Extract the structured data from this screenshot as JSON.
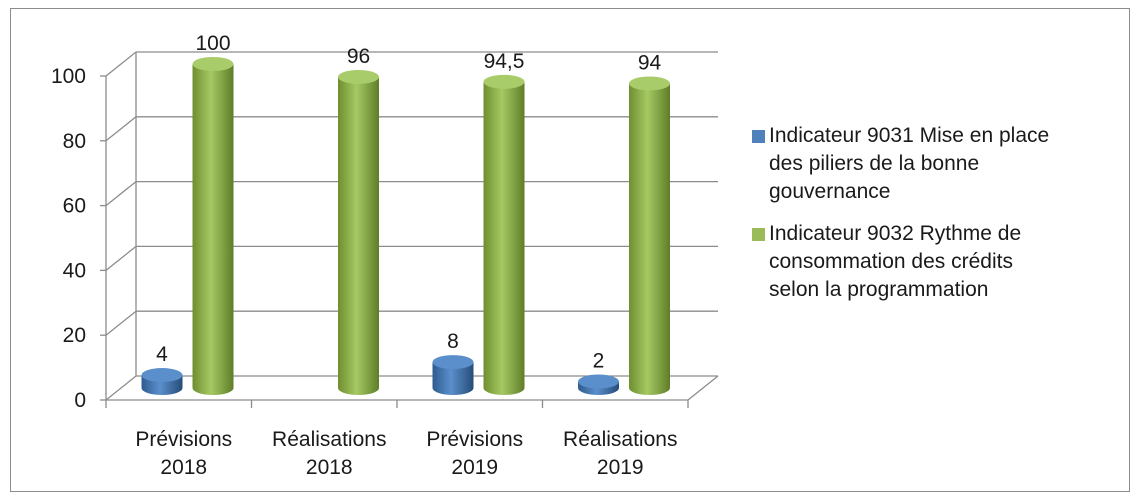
{
  "chart_data": {
    "type": "bar",
    "categories": [
      [
        "Prévisions",
        "2018"
      ],
      [
        "Réalisations",
        "2018"
      ],
      [
        "Prévisions",
        "2019"
      ],
      [
        "Réalisations",
        "2019"
      ]
    ],
    "series": [
      {
        "name": "Indicateur 9031 Mise en place des piliers de la bonne gouvernance",
        "legend_lines": [
          "Indicateur 9031 Mise en place",
          "des piliers de la bonne",
          "gouvernance"
        ],
        "values": [
          4,
          null,
          8,
          2
        ],
        "labels": [
          "4",
          "",
          "8",
          "2"
        ],
        "color": "#4f81bd"
      },
      {
        "name": "Indicateur 9032 Rythme de consommation des crédits selon la programmation",
        "legend_lines": [
          "Indicateur 9032 Rythme de",
          "consommation des crédits",
          "selon la programmation"
        ],
        "values": [
          100,
          96,
          94.5,
          94
        ],
        "labels": [
          "100",
          "96",
          "94,5",
          "94"
        ],
        "color": "#9bbb59"
      }
    ],
    "yticks": [
      "0",
      "20",
      "40",
      "60",
      "80",
      "100"
    ],
    "ylim": [
      0,
      100
    ],
    "grid": true,
    "legend_position": "right",
    "style": "3d-cylinder"
  }
}
